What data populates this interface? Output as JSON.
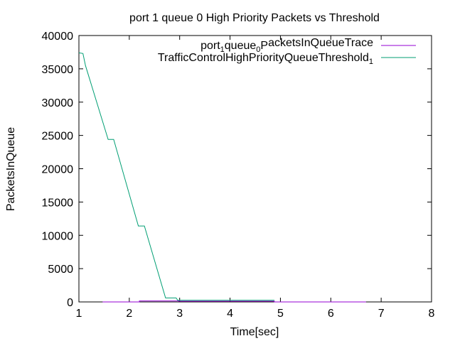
{
  "chart_data": {
    "type": "line",
    "title": "port 1 queue 0 High Priority Packets vs Threshold",
    "xlabel": "Time[sec]",
    "ylabel": "PacketsInQueue",
    "xlim": [
      1,
      8
    ],
    "ylim": [
      0,
      40000
    ],
    "x_ticks": [
      1,
      2,
      3,
      4,
      5,
      6,
      7,
      8
    ],
    "y_ticks": [
      0,
      5000,
      10000,
      15000,
      20000,
      25000,
      30000,
      35000,
      40000
    ],
    "grid": false,
    "legend_position": "top-right",
    "series": [
      {
        "name": "port_1queue_0PacketsInQueueTrace",
        "legend_parts": [
          "port",
          "1",
          "queue",
          "0",
          "P",
          "acketsInQueueTrace"
        ],
        "color": "#9400d3",
        "points": [
          [
            1.47,
            0
          ],
          [
            2.2,
            0
          ],
          [
            2.2,
            150
          ],
          [
            2.98,
            150
          ],
          [
            2.98,
            100
          ],
          [
            4.88,
            100
          ],
          [
            4.88,
            0
          ],
          [
            6.7,
            0
          ]
        ]
      },
      {
        "name": "TrafficControlHighPriorityQueueThreshold_1",
        "legend_parts": [
          "TrafficControlHighPriorityQueueThreshold",
          "1"
        ],
        "color": "#009e73",
        "points": [
          [
            1.0,
            37400
          ],
          [
            1.08,
            37300
          ],
          [
            1.13,
            35500
          ],
          [
            1.58,
            24400
          ],
          [
            1.69,
            24400
          ],
          [
            2.18,
            11400
          ],
          [
            2.3,
            11400
          ],
          [
            2.72,
            600
          ],
          [
            2.93,
            600
          ],
          [
            2.96,
            250
          ],
          [
            4.88,
            250
          ]
        ]
      }
    ]
  }
}
